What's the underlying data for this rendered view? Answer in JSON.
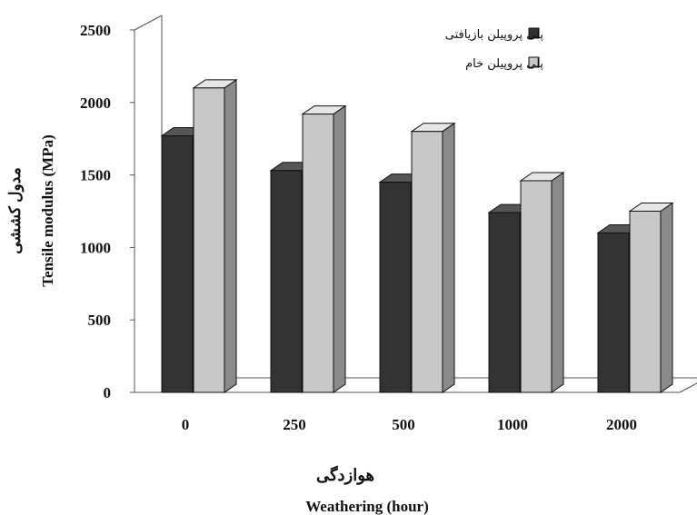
{
  "chart_data": {
    "type": "bar",
    "categories": [
      "0",
      "250",
      "500",
      "1000",
      "2000"
    ],
    "series": [
      {
        "name": "پلی پروپیلن بازیافتی",
        "values": [
          1770,
          1530,
          1450,
          1240,
          1100
        ]
      },
      {
        "name": "پلی پروپیلن خام",
        "values": [
          2100,
          1920,
          1800,
          1460,
          1250
        ]
      }
    ],
    "xlabel_fa": "هوازدگی",
    "xlabel_en": "Weathering (hour)",
    "ylabel_fa": "مدول کششی",
    "ylabel_en": "Tensile modulus (MPa)",
    "ylim": [
      0,
      2500
    ],
    "yticks": [
      "0",
      "500",
      "1000",
      "1500",
      "2000",
      "2500"
    ],
    "grid": false,
    "legend_position": "top-right",
    "colors": {
      "series1": "#333333",
      "series2": "#c8c8c8"
    }
  }
}
